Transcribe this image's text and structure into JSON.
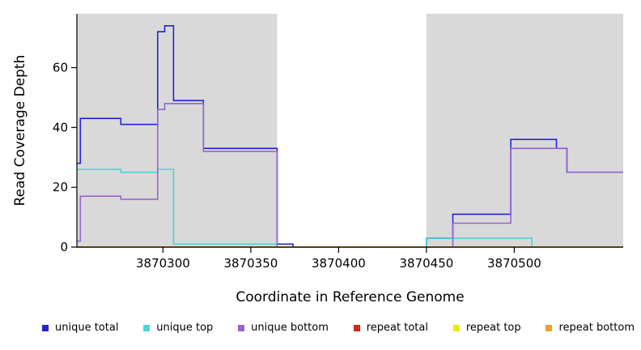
{
  "chart_data": {
    "type": "line",
    "title": "",
    "xlabel": "Coordinate in Reference Genome",
    "ylabel": "Read Coverage Depth",
    "x_range": [
      3870251,
      3870562
    ],
    "y_range": [
      0,
      78
    ],
    "x_ticks": [
      3870300,
      3870350,
      3870400,
      3870450,
      3870500
    ],
    "y_ticks": [
      0,
      20,
      40,
      60
    ],
    "grid": false,
    "shaded_regions": [
      {
        "x0": 3870251,
        "x1": 3870365,
        "color": "#d9d9d9"
      },
      {
        "x0": 3870450,
        "x1": 3870562,
        "color": "#d9d9d9"
      }
    ],
    "series": [
      {
        "name": "unique total",
        "color": "#2323d6",
        "steps": [
          [
            3870251,
            28
          ],
          [
            3870253,
            43
          ],
          [
            3870276,
            41
          ],
          [
            3870297,
            72
          ],
          [
            3870301,
            74
          ],
          [
            3870306,
            49
          ],
          [
            3870323,
            33
          ],
          [
            3870365,
            1
          ],
          [
            3870374,
            0
          ],
          [
            3870450,
            3
          ],
          [
            3870465,
            11
          ],
          [
            3870498,
            36
          ],
          [
            3870524,
            33
          ],
          [
            3870530,
            25
          ]
        ]
      },
      {
        "name": "unique top",
        "color": "#45d6d6",
        "steps": [
          [
            3870251,
            26
          ],
          [
            3870276,
            25
          ],
          [
            3870297,
            26
          ],
          [
            3870306,
            1
          ],
          [
            3870365,
            0
          ],
          [
            3870450,
            3
          ],
          [
            3870510,
            0
          ]
        ]
      },
      {
        "name": "unique bottom",
        "color": "#9a63d0",
        "steps": [
          [
            3870251,
            2
          ],
          [
            3870253,
            17
          ],
          [
            3870276,
            16
          ],
          [
            3870297,
            46
          ],
          [
            3870301,
            48
          ],
          [
            3870323,
            32
          ],
          [
            3870365,
            0
          ],
          [
            3870465,
            8
          ],
          [
            3870498,
            33
          ],
          [
            3870530,
            25
          ]
        ]
      },
      {
        "name": "repeat total",
        "color": "#d62323",
        "steps": [
          [
            3870251,
            0
          ]
        ]
      },
      {
        "name": "repeat top",
        "color": "#ebeb00",
        "steps": [
          [
            3870251,
            0
          ]
        ]
      },
      {
        "name": "repeat bottom",
        "color": "#efa023",
        "steps": [
          [
            3870251,
            0
          ]
        ]
      }
    ]
  },
  "legend": {
    "items": [
      {
        "label": "unique total",
        "color": "#2323d6"
      },
      {
        "label": "unique top",
        "color": "#45d6d6"
      },
      {
        "label": "unique bottom",
        "color": "#9a63d0"
      },
      {
        "label": "repeat total",
        "color": "#d62323"
      },
      {
        "label": "repeat top",
        "color": "#ebeb00"
      },
      {
        "label": "repeat bottom",
        "color": "#efa023"
      }
    ]
  }
}
